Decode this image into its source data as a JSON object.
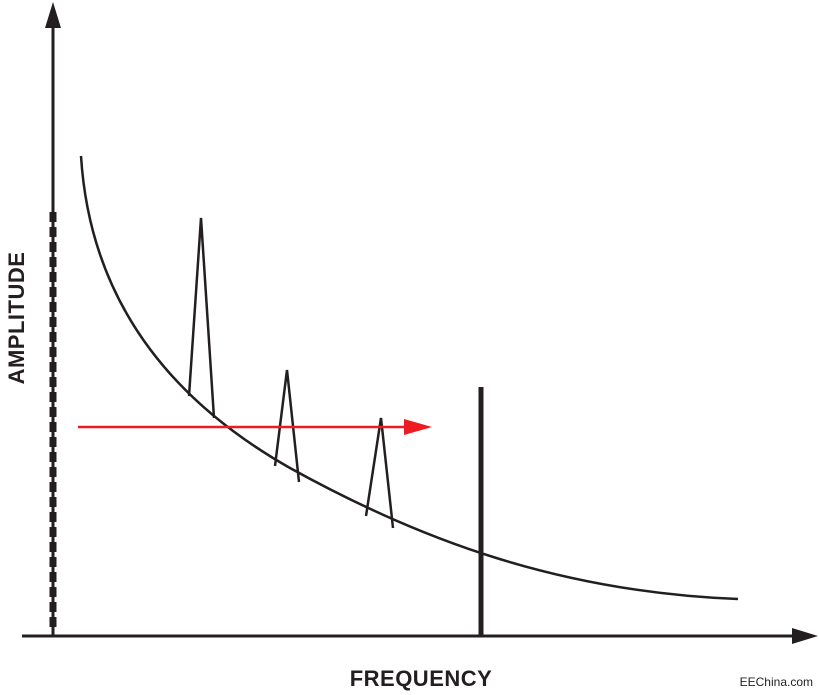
{
  "labels": {
    "y_axis": "AMPLITUDE",
    "x_axis": "FREQUENCY"
  },
  "watermark": "EEChina.com",
  "colors": {
    "stroke": "#231f20",
    "arrow": "#ed1c24",
    "background": "#ffffff"
  }
}
